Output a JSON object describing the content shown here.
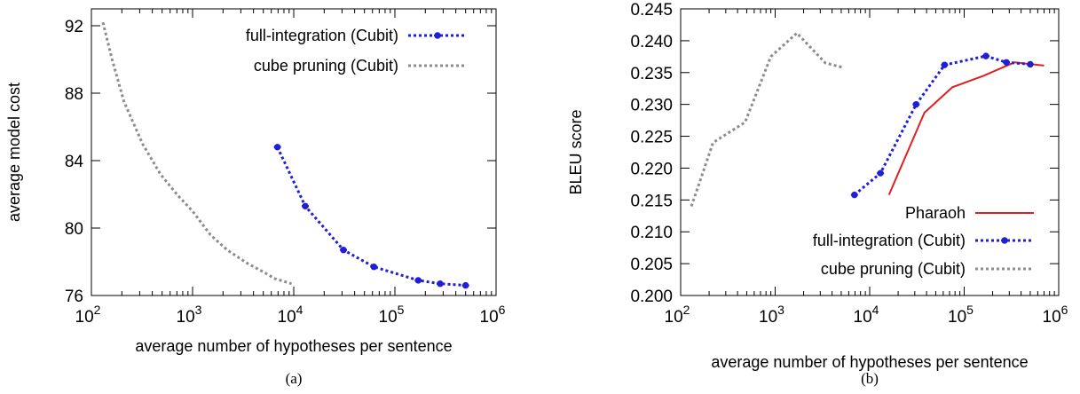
{
  "chart_data": [
    {
      "type": "line",
      "caption": "(a)",
      "xlabel": "average number of hypotheses per sentence",
      "ylabel": "average model cost",
      "xscale": "log",
      "xlim": [
        100,
        1000000
      ],
      "ylim": [
        76,
        93
      ],
      "x_ticks": [
        {
          "base": "10",
          "exp": "2",
          "value": 100
        },
        {
          "base": "10",
          "exp": "3",
          "value": 1000
        },
        {
          "base": "10",
          "exp": "4",
          "value": 10000
        },
        {
          "base": "10",
          "exp": "5",
          "value": 100000
        },
        {
          "base": "10",
          "exp": "6",
          "value": 1000000
        }
      ],
      "y_ticks": [
        {
          "label": "76",
          "value": 76
        },
        {
          "label": "80",
          "value": 80
        },
        {
          "label": "84",
          "value": 84
        },
        {
          "label": "88",
          "value": 88
        },
        {
          "label": "92",
          "value": 92
        }
      ],
      "legend_position": "top-right",
      "series": [
        {
          "name": "full-integration (Cubit)",
          "color": "#1f1fd6",
          "style": "dotted-markers",
          "points": [
            [
              6900,
              84.8
            ],
            [
              13000,
              81.3
            ],
            [
              31000,
              78.7
            ],
            [
              62000,
              77.7
            ],
            [
              170000,
              76.9
            ],
            [
              280000,
              76.7
            ],
            [
              500000,
              76.6
            ]
          ]
        },
        {
          "name": "cube pruning (Cubit)",
          "color": "#8c8c8c",
          "style": "dotted",
          "points": [
            [
              130,
              92.2
            ],
            [
              160,
              90.0
            ],
            [
              210,
              87.5
            ],
            [
              320,
              85.0
            ],
            [
              480,
              83.2
            ],
            [
              700,
              82.0
            ],
            [
              1000,
              81.0
            ],
            [
              1500,
              79.6
            ],
            [
              2200,
              78.7
            ],
            [
              3500,
              77.9
            ],
            [
              5000,
              77.4
            ],
            [
              6500,
              77.0
            ],
            [
              9500,
              76.7
            ]
          ]
        }
      ]
    },
    {
      "type": "line",
      "caption": "(b)",
      "xlabel": "average number of hypotheses per sentence",
      "ylabel": "BLEU score",
      "xscale": "log",
      "xlim": [
        100,
        1000000
      ],
      "ylim": [
        0.2,
        0.245
      ],
      "x_ticks": [
        {
          "base": "10",
          "exp": "2",
          "value": 100
        },
        {
          "base": "10",
          "exp": "3",
          "value": 1000
        },
        {
          "base": "10",
          "exp": "4",
          "value": 10000
        },
        {
          "base": "10",
          "exp": "5",
          "value": 100000
        },
        {
          "base": "10",
          "exp": "6",
          "value": 1000000
        }
      ],
      "y_ticks": [
        {
          "label": "0.200",
          "value": 0.2
        },
        {
          "label": "0.205",
          "value": 0.205
        },
        {
          "label": "0.210",
          "value": 0.21
        },
        {
          "label": "0.215",
          "value": 0.215
        },
        {
          "label": "0.220",
          "value": 0.22
        },
        {
          "label": "0.225",
          "value": 0.225
        },
        {
          "label": "0.230",
          "value": 0.23
        },
        {
          "label": "0.235",
          "value": 0.235
        },
        {
          "label": "0.240",
          "value": 0.24
        },
        {
          "label": "0.245",
          "value": 0.245
        }
      ],
      "legend_position": "bottom-right",
      "series": [
        {
          "name": "Pharaoh",
          "color": "#e02020",
          "style": "solid",
          "points": [
            [
              16000,
              0.2158
            ],
            [
              38000,
              0.2287
            ],
            [
              75000,
              0.2327
            ],
            [
              160000,
              0.2345
            ],
            [
              340000,
              0.2366
            ],
            [
              700000,
              0.2361
            ]
          ]
        },
        {
          "name": "full-integration (Cubit)",
          "color": "#1f1fd6",
          "style": "dotted-markers",
          "points": [
            [
              6900,
              0.2158
            ],
            [
              13000,
              0.2192
            ],
            [
              31000,
              0.23
            ],
            [
              62000,
              0.2362
            ],
            [
              170000,
              0.2376
            ],
            [
              280000,
              0.2366
            ],
            [
              500000,
              0.2363
            ]
          ]
        },
        {
          "name": "cube pruning (Cubit)",
          "color": "#8c8c8c",
          "style": "dotted",
          "points": [
            [
              130,
              0.214
            ],
            [
              220,
              0.224
            ],
            [
              480,
              0.2272
            ],
            [
              900,
              0.2375
            ],
            [
              1700,
              0.2412
            ],
            [
              3400,
              0.2365
            ],
            [
              5200,
              0.2358
            ]
          ]
        }
      ]
    }
  ]
}
